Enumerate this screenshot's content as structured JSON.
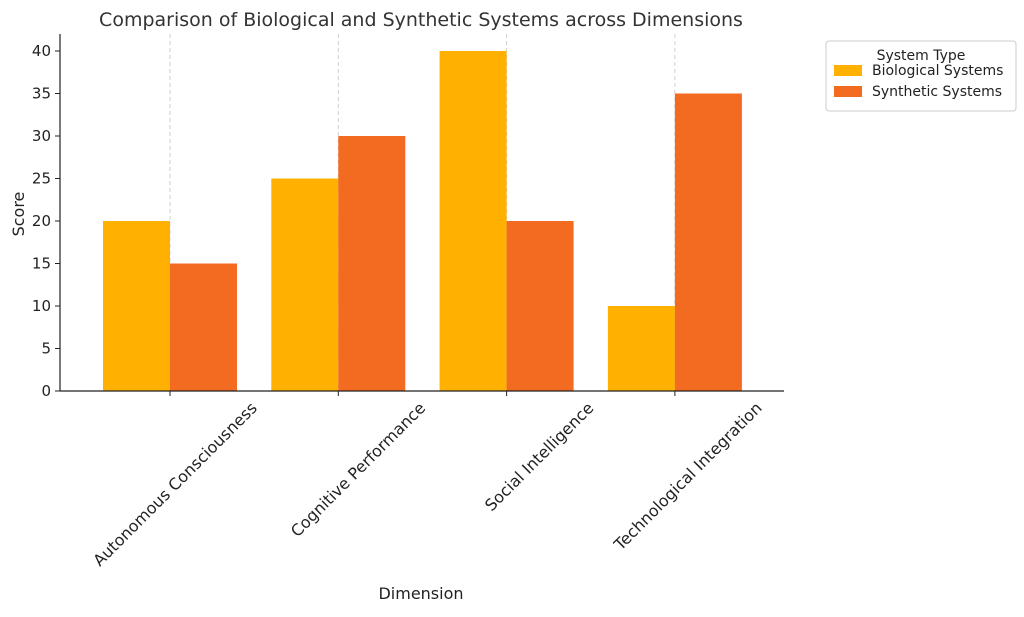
{
  "chart_data": {
    "type": "bar",
    "title": "Comparison of Biological and Synthetic Systems across Dimensions",
    "xlabel": "Dimension",
    "ylabel": "Score",
    "categories": [
      "Autonomous Consciousness",
      "Cognitive Performance",
      "Social Intelligence",
      "Technological Integration"
    ],
    "series": [
      {
        "name": "Biological Systems",
        "color": "#FFB000",
        "values": [
          20,
          25,
          40,
          10
        ]
      },
      {
        "name": "Synthetic Systems",
        "color": "#F26B21",
        "values": [
          15,
          30,
          20,
          35
        ]
      }
    ],
    "ylim": [
      0,
      42
    ],
    "yticks": [
      0,
      5,
      10,
      15,
      20,
      25,
      30,
      35,
      40
    ],
    "grid": "vertical-dashed-at-categories",
    "legend": {
      "title": "System Type",
      "placement": "outside-top-right"
    }
  }
}
